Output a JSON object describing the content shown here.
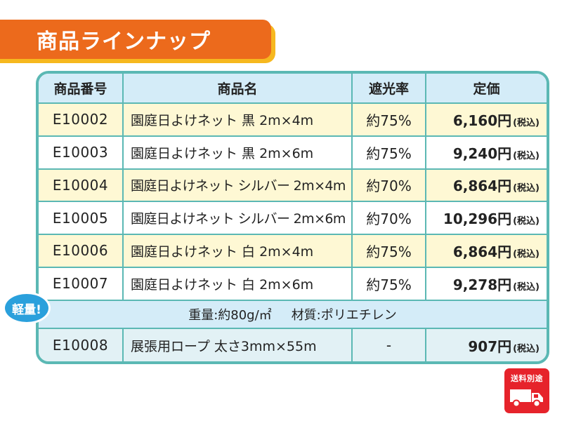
{
  "banner": {
    "title": "商品ラインナップ"
  },
  "table": {
    "headers": [
      "商品番号",
      "商品名",
      "遮光率",
      "定価"
    ],
    "rows": [
      {
        "code": "E10002",
        "name": "園庭日よけネット 黒 2m×4m",
        "rate": "約75%",
        "price": "6,160円",
        "tax": "(税込)"
      },
      {
        "code": "E10003",
        "name": "園庭日よけネット 黒 2m×6m",
        "rate": "約75%",
        "price": "9,240円",
        "tax": "(税込)"
      },
      {
        "code": "E10004",
        "name": "園庭日よけネット シルバー 2m×4m",
        "rate": "約70%",
        "price": "6,864円",
        "tax": "(税込)"
      },
      {
        "code": "E10005",
        "name": "園庭日よけネット シルバー 2m×6m",
        "rate": "約70%",
        "price": "10,296円",
        "tax": "(税込)"
      },
      {
        "code": "E10006",
        "name": "園庭日よけネット 白 2m×4m",
        "rate": "約75%",
        "price": "6,864円",
        "tax": "(税込)"
      },
      {
        "code": "E10007",
        "name": "園庭日よけネット 白 2m×6m",
        "rate": "約75%",
        "price": "9,278円",
        "tax": "(税込)"
      }
    ],
    "note": {
      "weight": "重量:約80g/㎡",
      "material": "材質:ポリエチレン"
    },
    "extra_row": {
      "code": "E10008",
      "name": "展張用ロープ 太さ3mm×55m",
      "rate": "-",
      "price": "907円",
      "tax": "(税込)"
    }
  },
  "badge": {
    "label": "軽量!"
  },
  "shipping": {
    "label": "送料別途"
  },
  "colors": {
    "banner": "#ec6a1c",
    "banner_shadow": "#f6b81f",
    "frame": "#5bb8b4",
    "header_bg": "#d4ecf8",
    "row_yellow": "#fef8d4",
    "row_gray": "#e2f1f5",
    "badge": "#2aa0dc",
    "shipping": "#e6232b"
  }
}
